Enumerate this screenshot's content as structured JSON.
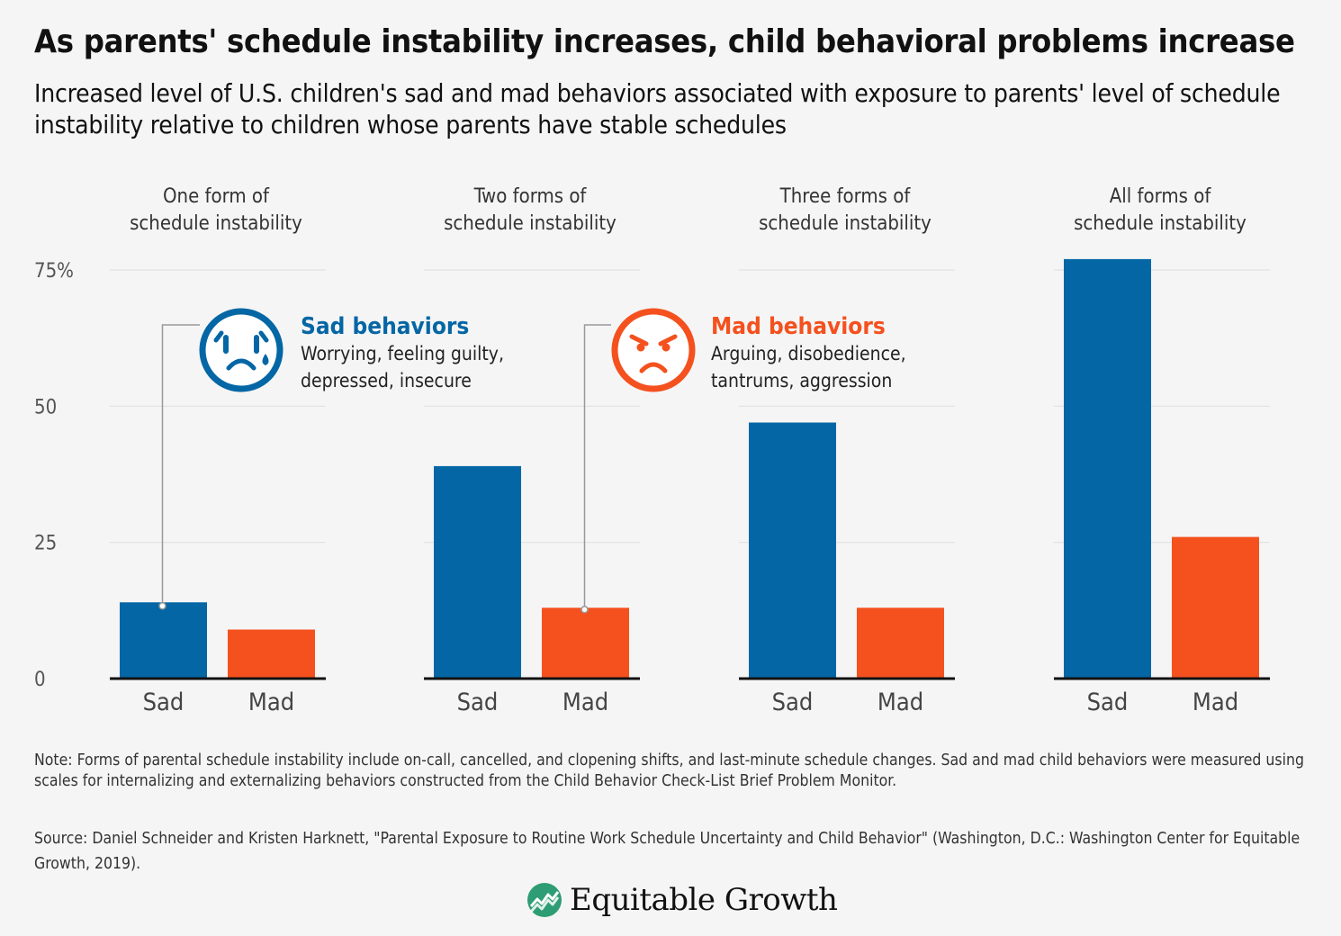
{
  "title": "As parents' schedule instability increases, child behavioral problems increase",
  "subtitle": "Increased level of U.S. children's sad and mad behaviors associated with exposure to parents' level of schedule instability relative to children whose parents have stable schedules",
  "chart_data": {
    "type": "bar",
    "ylim": [
      0,
      75
    ],
    "yticks": [
      "0",
      "25",
      "50",
      "75%"
    ],
    "grid": true,
    "panels": [
      {
        "title": [
          "One form of",
          "schedule instability"
        ],
        "categories": [
          "Sad",
          "Mad"
        ],
        "values": [
          14,
          9
        ]
      },
      {
        "title": [
          "Two forms of",
          "schedule instability"
        ],
        "categories": [
          "Sad",
          "Mad"
        ],
        "values": [
          39,
          13
        ]
      },
      {
        "title": [
          "Three forms of",
          "schedule instability"
        ],
        "categories": [
          "Sad",
          "Mad"
        ],
        "values": [
          47,
          13
        ]
      },
      {
        "title": [
          "All forms of",
          "schedule instability"
        ],
        "categories": [
          "Sad",
          "Mad"
        ],
        "values": [
          77,
          26
        ]
      }
    ],
    "series": [
      {
        "name": "Sad behaviors",
        "description": [
          "Worrying, feeling guilty,",
          "depressed, insecure"
        ],
        "color": "#0466a5",
        "icon": "sad-crying-face-icon"
      },
      {
        "name": "Mad behaviors",
        "description": [
          "Arguing, disobedience,",
          "tantrums, aggression"
        ],
        "color": "#f4511e",
        "icon": "angry-face-icon"
      }
    ]
  },
  "note": "Note: Forms of parental schedule instability include on-call, cancelled, and clopening shifts, and last-minute schedule changes. Sad and mad child behaviors were measured using scales for internalizing and externalizing behaviors constructed from the Child Behavior Check-List Brief Problem Monitor.",
  "source": "Source: Daniel Schneider and Kristen Harknett, \"Parental Exposure to Routine Work Schedule Uncertainty and Child Behavior\" (Washington, D.C.: Washington Center for Equitable Growth, 2019).",
  "brand": {
    "name": "Equitable Growth",
    "icon": "equitable-growth-logo-icon",
    "color": "#2e9d73"
  }
}
